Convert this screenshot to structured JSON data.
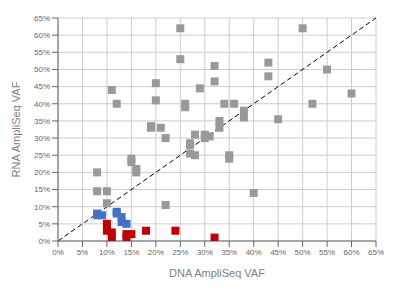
{
  "chart_data": {
    "type": "scatter",
    "title": "",
    "xlabel": "DNA AmpliSeq VAF",
    "ylabel": "RNA AmpliSeq VAF",
    "xlim": [
      0,
      0.65
    ],
    "ylim": [
      0,
      0.65
    ],
    "xticks": [
      {
        "value": 0.0,
        "label": "0%"
      },
      {
        "value": 0.05,
        "label": "5%"
      },
      {
        "value": 0.1,
        "label": "10%"
      },
      {
        "value": 0.15,
        "label": "15%"
      },
      {
        "value": 0.2,
        "label": "20%"
      },
      {
        "value": 0.25,
        "label": "25%"
      },
      {
        "value": 0.3,
        "label": "30%"
      },
      {
        "value": 0.35,
        "label": "35%"
      },
      {
        "value": 0.4,
        "label": "40%"
      },
      {
        "value": 0.45,
        "label": "45%"
      },
      {
        "value": 0.5,
        "label": "50%"
      },
      {
        "value": 0.55,
        "label": "55%"
      },
      {
        "value": 0.6,
        "label": "60%"
      },
      {
        "value": 0.65,
        "label": "65%"
      }
    ],
    "yticks": [
      {
        "value": 0.0,
        "label": "0%"
      },
      {
        "value": 0.05,
        "label": "5%"
      },
      {
        "value": 0.1,
        "label": "10%"
      },
      {
        "value": 0.15,
        "label": "15%"
      },
      {
        "value": 0.2,
        "label": "20%"
      },
      {
        "value": 0.25,
        "label": "25%"
      },
      {
        "value": 0.3,
        "label": "30%"
      },
      {
        "value": 0.35,
        "label": "35%"
      },
      {
        "value": 0.4,
        "label": "40%"
      },
      {
        "value": 0.45,
        "label": "45%"
      },
      {
        "value": 0.5,
        "label": "50%"
      },
      {
        "value": 0.55,
        "label": "55%"
      },
      {
        "value": 0.6,
        "label": "60%"
      },
      {
        "value": 0.65,
        "label": "65%"
      }
    ],
    "grid": true,
    "series": [
      {
        "type": "scatter",
        "marker": "square",
        "color": "#999999",
        "values": [
          [
            0.08,
            0.2
          ],
          [
            0.08,
            0.145
          ],
          [
            0.1,
            0.11
          ],
          [
            0.1,
            0.145
          ],
          [
            0.11,
            0.44
          ],
          [
            0.12,
            0.4
          ],
          [
            0.15,
            0.23
          ],
          [
            0.15,
            0.24
          ],
          [
            0.16,
            0.2
          ],
          [
            0.16,
            0.21
          ],
          [
            0.19,
            0.33
          ],
          [
            0.19,
            0.335
          ],
          [
            0.2,
            0.46
          ],
          [
            0.2,
            0.41
          ],
          [
            0.21,
            0.33
          ],
          [
            0.22,
            0.3
          ],
          [
            0.22,
            0.105
          ],
          [
            0.25,
            0.62
          ],
          [
            0.25,
            0.53
          ],
          [
            0.26,
            0.4
          ],
          [
            0.26,
            0.39
          ],
          [
            0.27,
            0.28
          ],
          [
            0.27,
            0.285
          ],
          [
            0.27,
            0.255
          ],
          [
            0.28,
            0.31
          ],
          [
            0.28,
            0.25
          ],
          [
            0.29,
            0.445
          ],
          [
            0.3,
            0.31
          ],
          [
            0.3,
            0.3
          ],
          [
            0.31,
            0.305
          ],
          [
            0.32,
            0.465
          ],
          [
            0.32,
            0.51
          ],
          [
            0.33,
            0.35
          ],
          [
            0.33,
            0.33
          ],
          [
            0.34,
            0.4
          ],
          [
            0.35,
            0.25
          ],
          [
            0.35,
            0.24
          ],
          [
            0.36,
            0.4
          ],
          [
            0.38,
            0.38
          ],
          [
            0.38,
            0.36
          ],
          [
            0.4,
            0.14
          ],
          [
            0.43,
            0.48
          ],
          [
            0.43,
            0.52
          ],
          [
            0.45,
            0.355
          ],
          [
            0.5,
            0.62
          ],
          [
            0.52,
            0.4
          ],
          [
            0.55,
            0.5
          ],
          [
            0.6,
            0.43
          ]
        ]
      },
      {
        "type": "scatter",
        "marker": "square",
        "color": "#4472c4",
        "values": [
          [
            0.08,
            0.075
          ],
          [
            0.08,
            0.08
          ],
          [
            0.09,
            0.075
          ],
          [
            0.12,
            0.085
          ],
          [
            0.12,
            0.08
          ],
          [
            0.13,
            0.07
          ],
          [
            0.13,
            0.055
          ],
          [
            0.14,
            0.05
          ]
        ]
      },
      {
        "type": "scatter",
        "marker": "square",
        "color": "#c00000",
        "values": [
          [
            0.1,
            0.05
          ],
          [
            0.1,
            0.03
          ],
          [
            0.11,
            0.01
          ],
          [
            0.11,
            0.025
          ],
          [
            0.14,
            0.02
          ],
          [
            0.14,
            0.01
          ],
          [
            0.15,
            0.02
          ],
          [
            0.18,
            0.03
          ],
          [
            0.24,
            0.03
          ],
          [
            0.32,
            0.01
          ]
        ]
      },
      {
        "type": "line",
        "line_style": "dashed",
        "color": "#000000",
        "values": [
          [
            0,
            0
          ],
          [
            0.65,
            0.65
          ]
        ]
      }
    ]
  }
}
